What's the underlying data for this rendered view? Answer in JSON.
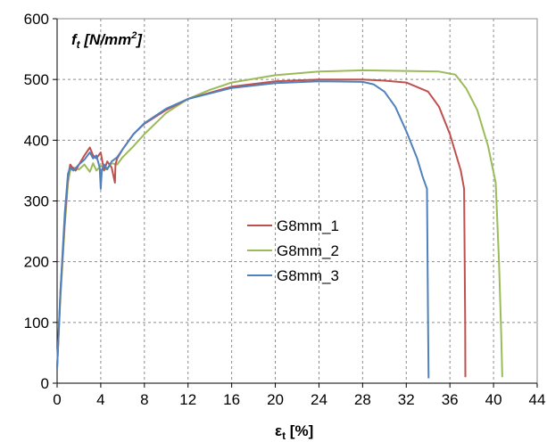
{
  "chart_data": {
    "type": "line",
    "title": "",
    "ylabel_main": "f",
    "ylabel_sub": "t",
    "ylabel_unit": " [N/mm",
    "ylabel_sup": "2",
    "ylabel_close": "]",
    "xlabel_main": "ε",
    "xlabel_sub": "t",
    "xlabel_unit": " [%]",
    "xlim": [
      0,
      44
    ],
    "ylim": [
      0,
      600
    ],
    "xticks": [
      "0",
      "4",
      "8",
      "12",
      "16",
      "20",
      "24",
      "28",
      "32",
      "36",
      "40",
      "44"
    ],
    "yticks": [
      "0",
      "100",
      "200",
      "300",
      "400",
      "500",
      "600"
    ],
    "grid": true,
    "legend_position": "center-right",
    "series": [
      {
        "name": "G8mm_1",
        "color": "#c0504d",
        "x": [
          0,
          0.3,
          0.7,
          1.0,
          1.2,
          1.4,
          1.7,
          2.0,
          2.5,
          3.0,
          3.3,
          3.6,
          4.0,
          4.3,
          4.6,
          5.0,
          5.3,
          5.35,
          5.5,
          6,
          7,
          8,
          10,
          12,
          16,
          20,
          24,
          28,
          30,
          32,
          34,
          35,
          36,
          37,
          37.3,
          37.4,
          37.42
        ],
        "y": [
          25,
          150,
          270,
          340,
          360,
          355,
          350,
          360,
          375,
          388,
          375,
          370,
          380,
          350,
          365,
          355,
          330,
          360,
          370,
          385,
          410,
          427,
          450,
          468,
          488,
          497,
          500,
          500,
          498,
          495,
          480,
          455,
          410,
          350,
          320,
          100,
          10
        ]
      },
      {
        "name": "G8mm_2",
        "color": "#9bbb59",
        "x": [
          0,
          0.3,
          0.7,
          1.0,
          1.2,
          1.5,
          2.0,
          2.5,
          3.0,
          3.3,
          3.6,
          4.0,
          4.5,
          5.0,
          5.5,
          6,
          7,
          8,
          10,
          12,
          14,
          16,
          20,
          24,
          28,
          32,
          35,
          36.5,
          37.5,
          38.5,
          39.5,
          40.2,
          40.5,
          40.7,
          40.8
        ],
        "y": [
          25,
          140,
          260,
          330,
          350,
          355,
          352,
          360,
          348,
          362,
          350,
          358,
          352,
          362,
          360,
          372,
          390,
          410,
          445,
          468,
          483,
          495,
          507,
          513,
          515,
          514,
          513,
          508,
          485,
          450,
          390,
          330,
          200,
          80,
          10
        ]
      },
      {
        "name": "G8mm_3",
        "color": "#4f81bd",
        "x": [
          0,
          0.3,
          0.7,
          1.0,
          1.2,
          1.5,
          2.0,
          2.5,
          3.0,
          3.3,
          3.6,
          3.9,
          4.0,
          4.1,
          4.3,
          4.6,
          5.0,
          5.5,
          6,
          7,
          8,
          10,
          12,
          16,
          20,
          24,
          28,
          29,
          30,
          31,
          32,
          33,
          33.5,
          33.9,
          34.0,
          34.05
        ],
        "y": [
          25,
          150,
          280,
          345,
          355,
          350,
          360,
          368,
          380,
          370,
          375,
          355,
          320,
          350,
          360,
          352,
          365,
          372,
          385,
          410,
          428,
          452,
          468,
          486,
          494,
          497,
          496,
          492,
          480,
          455,
          415,
          370,
          340,
          320,
          100,
          8
        ]
      }
    ]
  }
}
